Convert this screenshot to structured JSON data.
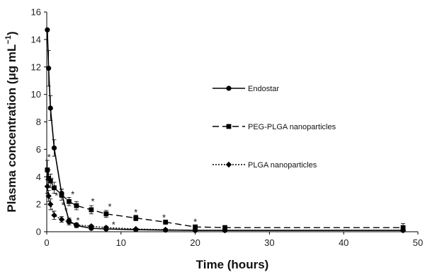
{
  "chart_data": {
    "type": "line",
    "xlabel": "Time (hours)",
    "ylabel": "Plasma concentration (μg mL",
    "ylabel_sup": "−1",
    "ylabel_close": ")",
    "xlim": [
      0,
      50
    ],
    "ylim": [
      0,
      16
    ],
    "x_ticks": [
      0,
      10,
      20,
      30,
      40,
      50
    ],
    "y_ticks": [
      0,
      2,
      4,
      6,
      8,
      10,
      12,
      14,
      16
    ],
    "grid": false,
    "legend_position": "right",
    "series": [
      {
        "name": "Endostar",
        "line_style": "solid",
        "marker": "circle",
        "color": "#000000",
        "x": [
          0.08,
          0.25,
          0.5,
          1,
          2,
          3,
          4,
          6,
          8,
          12,
          16,
          20,
          24,
          48
        ],
        "y": [
          14.7,
          11.9,
          9.0,
          6.1,
          2.8,
          0.8,
          0.45,
          0.25,
          0.2,
          0.15,
          0.12,
          0.1,
          0.1,
          0.1
        ],
        "err": [
          0,
          1.3,
          0.9,
          0.6,
          0.3,
          0.2,
          0.15,
          0.1,
          0.1,
          0.05,
          0.05,
          0.05,
          0.05,
          0.05
        ]
      },
      {
        "name": "PEG-PLGA nanoparticles",
        "line_style": "dashed",
        "marker": "square",
        "color": "#000000",
        "x": [
          0.08,
          0.25,
          0.5,
          1,
          2,
          3,
          4,
          6,
          8,
          12,
          16,
          20,
          24,
          48
        ],
        "y": [
          4.5,
          3.9,
          3.7,
          3.2,
          2.7,
          2.2,
          1.9,
          1.6,
          1.3,
          1.0,
          0.7,
          0.35,
          0.3,
          0.3
        ],
        "err": [
          0.7,
          0.6,
          0.5,
          0.4,
          0.4,
          0.3,
          0.3,
          0.3,
          0.25,
          0.2,
          0.15,
          0.1,
          0.15,
          0.3
        ]
      },
      {
        "name": "PLGA nanoparticles",
        "line_style": "dotted",
        "marker": "diamond",
        "color": "#000000",
        "x": [
          0.08,
          0.25,
          0.5,
          1,
          2,
          3,
          4,
          6,
          8,
          12,
          16,
          20,
          24,
          48
        ],
        "y": [
          3.3,
          2.6,
          2.0,
          1.2,
          0.9,
          0.7,
          0.5,
          0.4,
          0.3,
          0.2,
          0.15,
          0.1,
          0.1,
          0.1
        ],
        "err": [
          0.5,
          0.4,
          0.4,
          0.3,
          0.2,
          0.2,
          0.15,
          0.1,
          0.1,
          0.05,
          0.05,
          0.05,
          0.05,
          0.05
        ]
      }
    ],
    "annotations": [
      {
        "text": "*",
        "x": 0.3,
        "y": 5.5
      },
      {
        "text": "*",
        "x": 0.7,
        "y": 3.8
      },
      {
        "text": "*",
        "x": 1.3,
        "y": 2.7
      },
      {
        "text": "*",
        "x": 2.2,
        "y": 2.0
      },
      {
        "text": "*",
        "x": 2.6,
        "y": 1.6
      },
      {
        "text": "*",
        "x": 3.5,
        "y": 2.8
      },
      {
        "text": "*",
        "x": 4.2,
        "y": 0.9
      },
      {
        "text": "*",
        "x": 6.2,
        "y": 2.3
      },
      {
        "text": "*",
        "x": 8.5,
        "y": 1.9
      },
      {
        "text": "*",
        "x": 9.0,
        "y": 0.6
      },
      {
        "text": "*",
        "x": 12,
        "y": 1.5
      },
      {
        "text": "*",
        "x": 15.8,
        "y": 1.1
      },
      {
        "text": "*",
        "x": 20,
        "y": 0.8
      }
    ]
  }
}
